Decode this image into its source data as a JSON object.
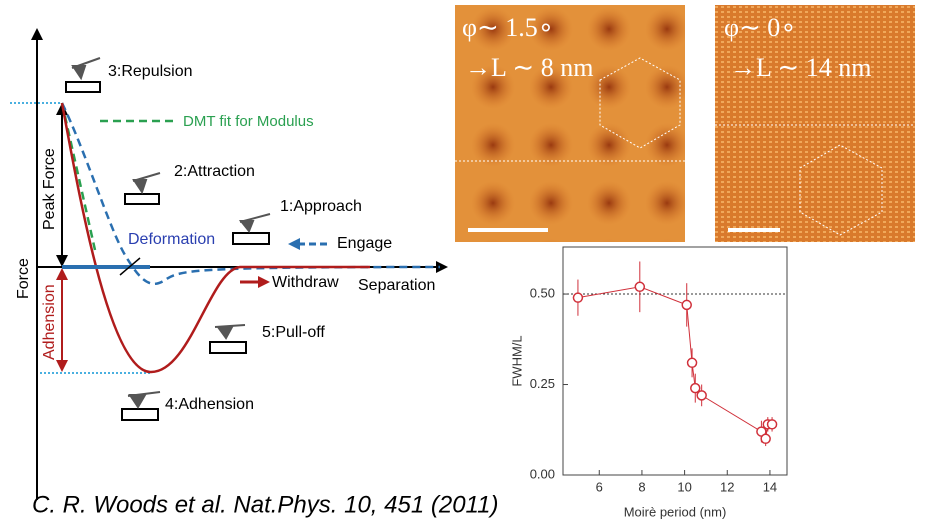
{
  "diagram": {
    "force_label": "Force",
    "separation_label": "Separation",
    "peak_force": "Peak Force",
    "adhesion_axis": "Adhension",
    "repulsion": "3:Repulsion",
    "dmt": "DMT fit for Modulus",
    "attraction": "2:Attraction",
    "approach": "1:Approach",
    "deformation": "Deformation",
    "engage": "Engage",
    "withdraw": "Withdraw",
    "pull_off": "5:Pull-off",
    "adhesion": "4:Adhension"
  },
  "images": [
    {
      "angle": "φ∼ 1.5∘",
      "period": "→L ∼ 8 nm"
    },
    {
      "angle": "φ∼ 0∘",
      "period": "→L ∼ 14 nm"
    }
  ],
  "citation": "C. R. Woods et al. Nat.Phys. 10, 451 (2011)",
  "chart_data": {
    "type": "scatter",
    "xlabel": "Moirè period (nm)",
    "ylabel": "FWHM/L",
    "color": "#d0303a",
    "x": [
      5,
      7.9,
      10.1,
      10.35,
      10.5,
      10.8,
      13.6,
      13.8,
      13.9,
      14.1
    ],
    "values": [
      0.49,
      0.52,
      0.47,
      0.31,
      0.24,
      0.22,
      0.12,
      0.1,
      0.14,
      0.14
    ],
    "yerr": [
      0.05,
      0.07,
      0.06,
      0.04,
      0.04,
      0.03,
      0.03,
      0.02,
      0.02,
      0.02
    ],
    "xlim": [
      4.3,
      14.8
    ],
    "ylim": [
      0,
      0.63
    ],
    "xticks": [
      6,
      8,
      10,
      12,
      14
    ],
    "yticks": [
      {
        "value": 0,
        "label": "0.00"
      },
      {
        "value": 0.25,
        "label": "0.25"
      },
      {
        "value": 0.5,
        "label": "0.50"
      }
    ],
    "hline": 0.5
  }
}
